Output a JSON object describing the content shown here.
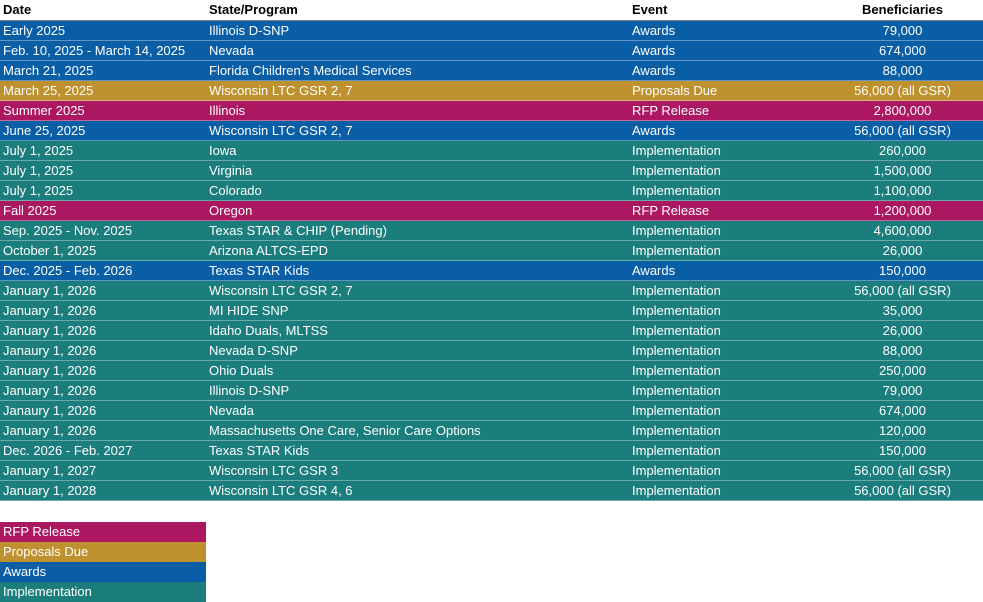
{
  "colors": {
    "Awards": "#0a5ea6",
    "Proposals Due": "#bf912e",
    "RFP Release": "#ab1760",
    "Implementation": "#1b7e7c"
  },
  "headers": {
    "date": "Date",
    "program": "State/Program",
    "event": "Event",
    "beneficiaries": "Beneficiaries"
  },
  "rows": [
    {
      "date": "Early 2025",
      "program": "Illinois D-SNP",
      "event": "Awards",
      "beneficiaries": "79,000"
    },
    {
      "date": "Feb. 10, 2025 - March 14, 2025",
      "program": "Nevada",
      "event": "Awards",
      "beneficiaries": "674,000"
    },
    {
      "date": "March 21, 2025",
      "program": "Florida Children's Medical Services",
      "event": "Awards",
      "beneficiaries": "88,000"
    },
    {
      "date": "March 25, 2025",
      "program": "Wisconsin LTC GSR 2, 7",
      "event": "Proposals Due",
      "beneficiaries": "56,000 (all GSR)"
    },
    {
      "date": "Summer 2025",
      "program": "Illinois",
      "event": "RFP Release",
      "beneficiaries": "2,800,000"
    },
    {
      "date": "June 25, 2025",
      "program": "Wisconsin LTC GSR 2, 7",
      "event": "Awards",
      "beneficiaries": "56,000 (all GSR)"
    },
    {
      "date": "July 1, 2025",
      "program": "Iowa",
      "event": "Implementation",
      "beneficiaries": "260,000"
    },
    {
      "date": "July 1, 2025",
      "program": "Virginia",
      "event": "Implementation",
      "beneficiaries": "1,500,000"
    },
    {
      "date": "July 1, 2025",
      "program": "Colorado",
      "event": "Implementation",
      "beneficiaries": "1,100,000"
    },
    {
      "date": "Fall 2025",
      "program": "Oregon",
      "event": "RFP Release",
      "beneficiaries": "1,200,000"
    },
    {
      "date": "Sep. 2025 - Nov. 2025",
      "program": "Texas STAR & CHIP (Pending)",
      "event": "Implementation",
      "beneficiaries": "4,600,000"
    },
    {
      "date": "October 1, 2025",
      "program": "Arizona ALTCS-EPD",
      "event": "Implementation",
      "beneficiaries": "26,000"
    },
    {
      "date": "Dec. 2025 - Feb. 2026",
      "program": "Texas STAR Kids",
      "event": "Awards",
      "beneficiaries": "150,000"
    },
    {
      "date": "January 1, 2026",
      "program": "Wisconsin LTC GSR 2, 7",
      "event": "Implementation",
      "beneficiaries": "56,000 (all GSR)"
    },
    {
      "date": "January 1, 2026",
      "program": "MI HIDE SNP",
      "event": "Implementation",
      "beneficiaries": "35,000"
    },
    {
      "date": "January 1, 2026",
      "program": "Idaho Duals, MLTSS",
      "event": "Implementation",
      "beneficiaries": "26,000"
    },
    {
      "date": "Janaury 1, 2026",
      "program": "Nevada D-SNP",
      "event": "Implementation",
      "beneficiaries": "88,000"
    },
    {
      "date": "January 1, 2026",
      "program": "Ohio Duals",
      "event": "Implementation",
      "beneficiaries": "250,000"
    },
    {
      "date": "January 1, 2026",
      "program": "Illinois D-SNP",
      "event": "Implementation",
      "beneficiaries": "79,000"
    },
    {
      "date": "Janaury 1, 2026",
      "program": "Nevada",
      "event": "Implementation",
      "beneficiaries": "674,000"
    },
    {
      "date": "January 1, 2026",
      "program": "Massachusetts One Care, Senior Care Options",
      "event": "Implementation",
      "beneficiaries": "120,000"
    },
    {
      "date": "Dec. 2026 - Feb. 2027",
      "program": "Texas STAR Kids",
      "event": "Implementation",
      "beneficiaries": "150,000"
    },
    {
      "date": "January 1, 2027",
      "program": "Wisconsin LTC GSR 3",
      "event": "Implementation",
      "beneficiaries": "56,000 (all GSR)"
    },
    {
      "date": "January 1, 2028",
      "program": "Wisconsin LTC GSR 4, 6",
      "event": "Implementation",
      "beneficiaries": "56,000 (all GSR)"
    }
  ],
  "legend": [
    {
      "label": "RFP Release"
    },
    {
      "label": "Proposals Due"
    },
    {
      "label": "Awards"
    },
    {
      "label": "Implementation"
    }
  ]
}
